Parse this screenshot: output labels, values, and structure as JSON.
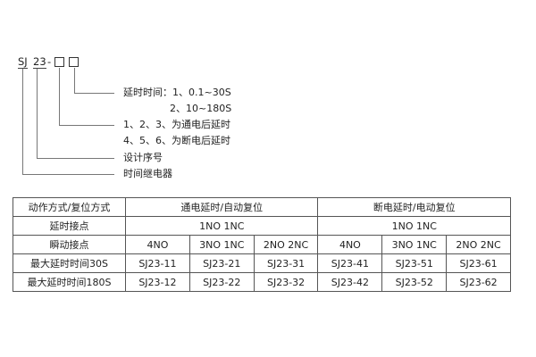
{
  "code": {
    "prefix": "SJ",
    "series": "23",
    "dash": "-"
  },
  "legend": [
    "延时时间：1、0.1~30S",
    "2、10~180S",
    "1、2、3、为通电后延时",
    "4、5、6、为断电后延时",
    "设计序号",
    "时间继电器"
  ],
  "table": {
    "rows": [
      {
        "label": "动作方式/复位方式",
        "groups": [
          "通电延时/自动复位",
          "断电延时/电动复位"
        ]
      },
      {
        "label": "延时接点",
        "groups": [
          "1NO 1NC",
          "1NO 1NC"
        ]
      },
      {
        "label": "瞬动接点",
        "cells": [
          "4NO",
          "3NO 1NC",
          "2NO 2NC",
          "4NO",
          "3NO 1NC",
          "2NO 2NC"
        ]
      },
      {
        "label": "最大延时时间30S",
        "cells": [
          "SJ23-11",
          "SJ23-21",
          "SJ23-31",
          "SJ23-41",
          "SJ23-51",
          "SJ23-61"
        ]
      },
      {
        "label": "最大延时时间180S",
        "cells": [
          "SJ23-12",
          "SJ23-22",
          "SJ23-32",
          "SJ23-42",
          "SJ23-52",
          "SJ23-62"
        ]
      }
    ]
  }
}
